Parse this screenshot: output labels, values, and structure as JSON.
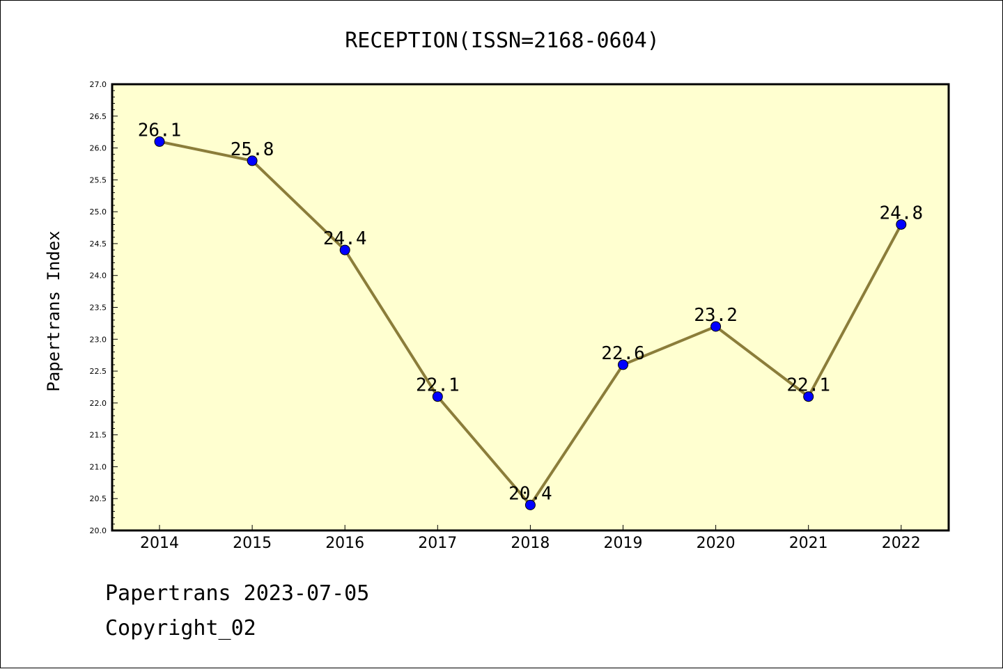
{
  "chart_data": {
    "type": "line",
    "title": "RECEPTION(ISSN=2168-0604)",
    "xlabel": "",
    "ylabel": "Papertrans Index",
    "categories": [
      "2014",
      "2015",
      "2016",
      "2017",
      "2018",
      "2019",
      "2020",
      "2021",
      "2022"
    ],
    "series": [
      {
        "values": [
          26.1,
          25.8,
          24.4,
          22.1,
          20.4,
          22.6,
          23.2,
          22.1,
          24.8
        ],
        "labels": [
          "26.1",
          "25.8",
          "24.4",
          "22.1",
          "20.4",
          "22.6",
          "23.2",
          "22.1",
          "24.8"
        ]
      }
    ],
    "ylim": [
      20.0,
      27.0
    ],
    "yticks": [
      "20.0",
      "20.5",
      "21.0",
      "21.5",
      "22.0",
      "22.5",
      "23.0",
      "23.5",
      "24.0",
      "24.5",
      "25.0",
      "25.5",
      "26.0",
      "26.5",
      "27.0"
    ],
    "grid": false,
    "legend": "none",
    "colors": {
      "plot_background": "#ffffd0",
      "line": "#8b7d3a",
      "marker": "#0000ff",
      "marker_edge": "#000000"
    }
  },
  "footer": {
    "line1": "Papertrans 2023-07-05",
    "line2": "Copyright_02"
  }
}
